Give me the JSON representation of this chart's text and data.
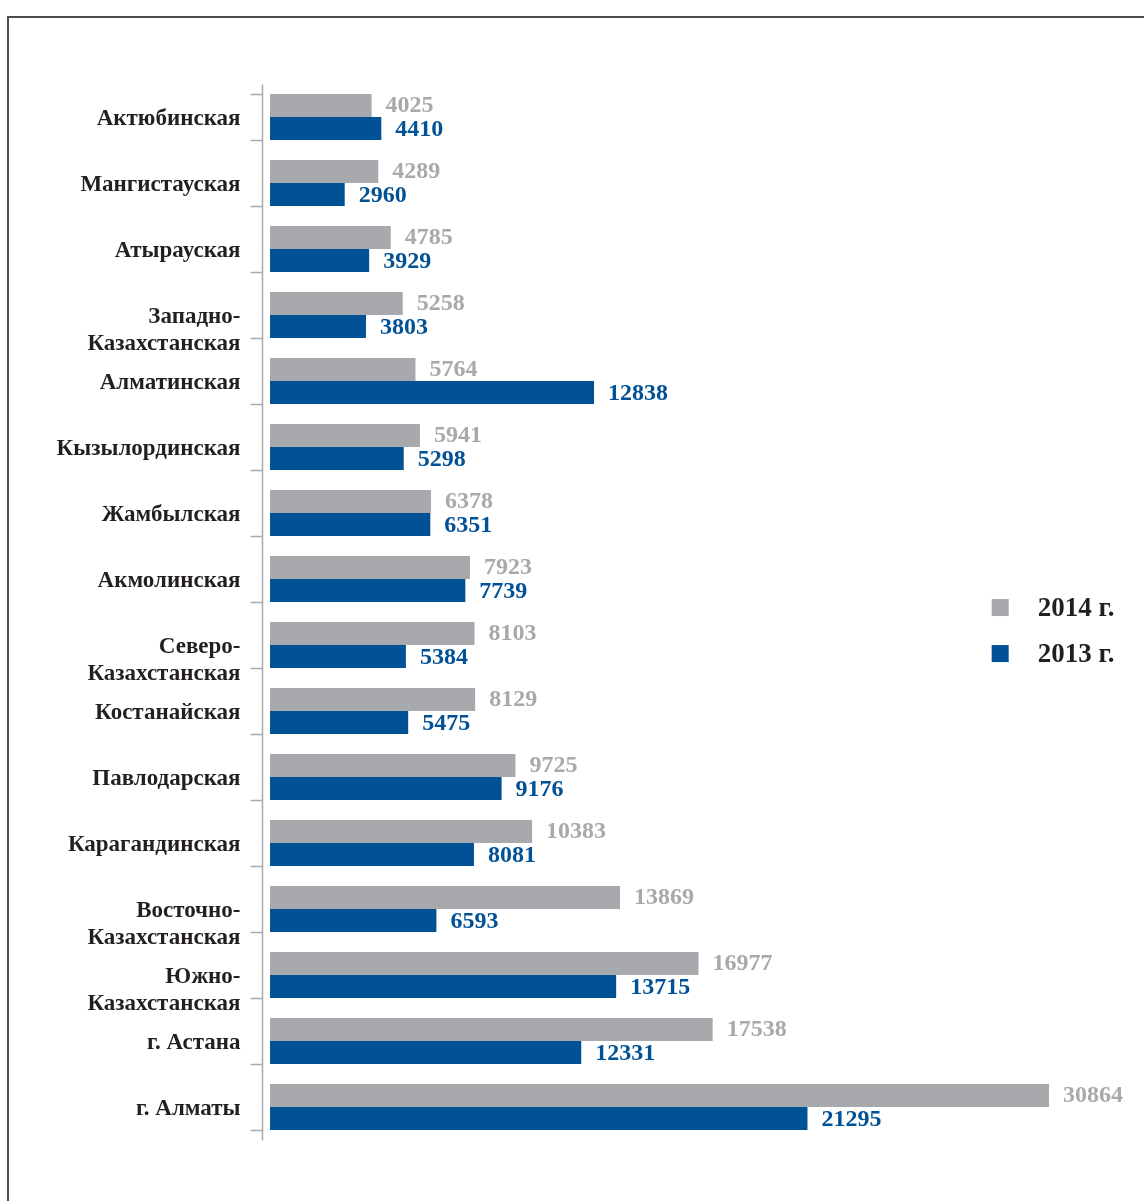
{
  "chart_data": {
    "type": "bar",
    "orientation": "horizontal",
    "categories": [
      "Актюбинская",
      "Мангистауская",
      "Атырауская",
      "Западно-Казахстанская",
      "Алматинская",
      "Кызылординская",
      "Жамбылская",
      "Акмолинская",
      "Северо-Казахстанская",
      "Костанайская",
      "Павлодарская",
      "Карагандинская",
      "Восточно-Казахстанская",
      "Южно-Казахстанская",
      "г. Астана",
      "г. Алматы"
    ],
    "series": [
      {
        "name": "2014 г.",
        "color": "#a7a9ac",
        "values": [
          4025,
          4289,
          4785,
          5258,
          5764,
          5941,
          6378,
          7923,
          8103,
          8129,
          9725,
          10383,
          13869,
          16977,
          17538,
          30864
        ]
      },
      {
        "name": "2013 г.",
        "color": "#005195",
        "values": [
          4410,
          2960,
          3929,
          3803,
          12838,
          5298,
          6351,
          7739,
          5384,
          5475,
          9176,
          8081,
          6593,
          13715,
          12331,
          21295
        ]
      }
    ],
    "data_labels": true,
    "legend": "right"
  }
}
